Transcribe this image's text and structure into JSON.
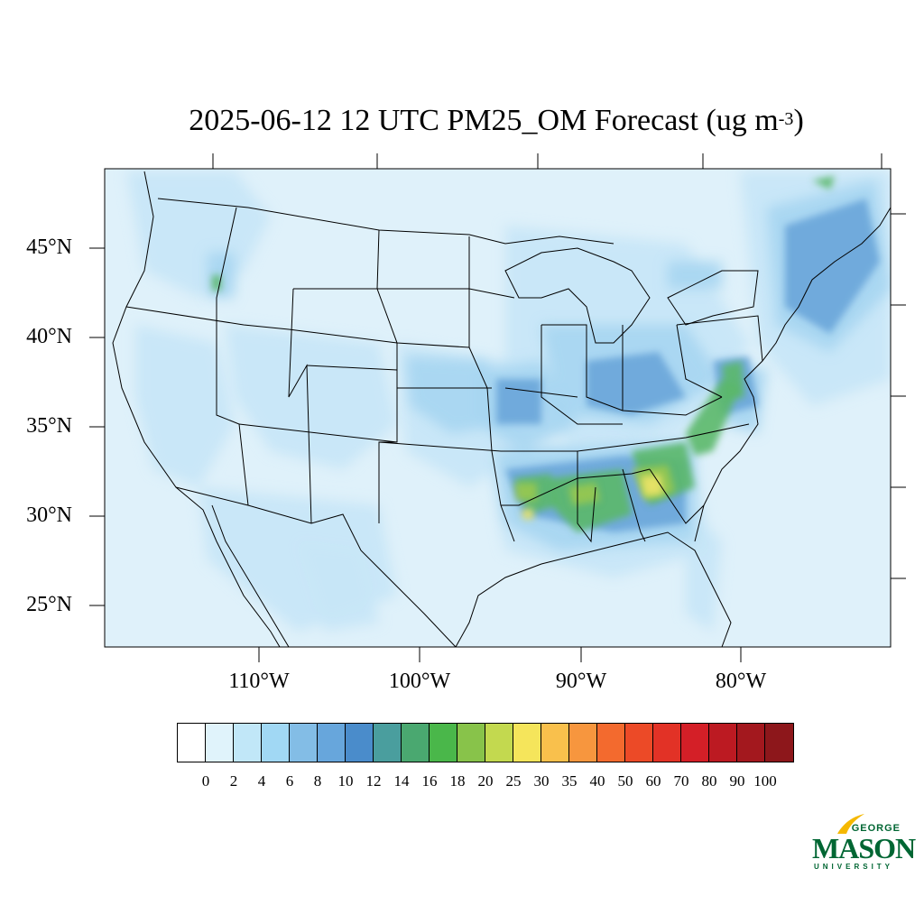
{
  "title": {
    "main": "2025-06-12 12 UTC PM25_OM Forecast (ug m",
    "superscript": "-3",
    "close": ")"
  },
  "latitude_labels": [
    "45°N",
    "40°N",
    "35°N",
    "30°N",
    "25°N"
  ],
  "longitude_labels": [
    "110°W",
    "100°W",
    "90°W",
    "80°W"
  ],
  "colorbar": {
    "labels": [
      "0",
      "2",
      "4",
      "6",
      "8",
      "10",
      "12",
      "14",
      "16",
      "18",
      "20",
      "25",
      "30",
      "35",
      "40",
      "50",
      "60",
      "70",
      "80",
      "90",
      "100"
    ],
    "colors": [
      "#ffffff",
      "#e0f3fb",
      "#c1e7f8",
      "#a1d8f4",
      "#83bde6",
      "#67a6dc",
      "#4a8ccb",
      "#4a9e9e",
      "#4aa870",
      "#4ab74a",
      "#88c34a",
      "#c3d94f",
      "#f5e55b",
      "#f9c04c",
      "#f7963e",
      "#f36a2e",
      "#ec4a27",
      "#e23226",
      "#d41f27",
      "#bc1a22",
      "#a3181e",
      "#8d171b"
    ]
  },
  "map_colors": {
    "ocean": "#dff1fa",
    "light": "#c6e6f7",
    "medium": "#a6d5f1",
    "dark": "#86bde6",
    "darker": "#6aa5d9",
    "green": "#5bb86a",
    "lime": "#98c84f",
    "yellow": "#ede468"
  },
  "logo": {
    "line1": "GEORGE",
    "line2": "MASON",
    "line3": "UNIVERSITY"
  }
}
